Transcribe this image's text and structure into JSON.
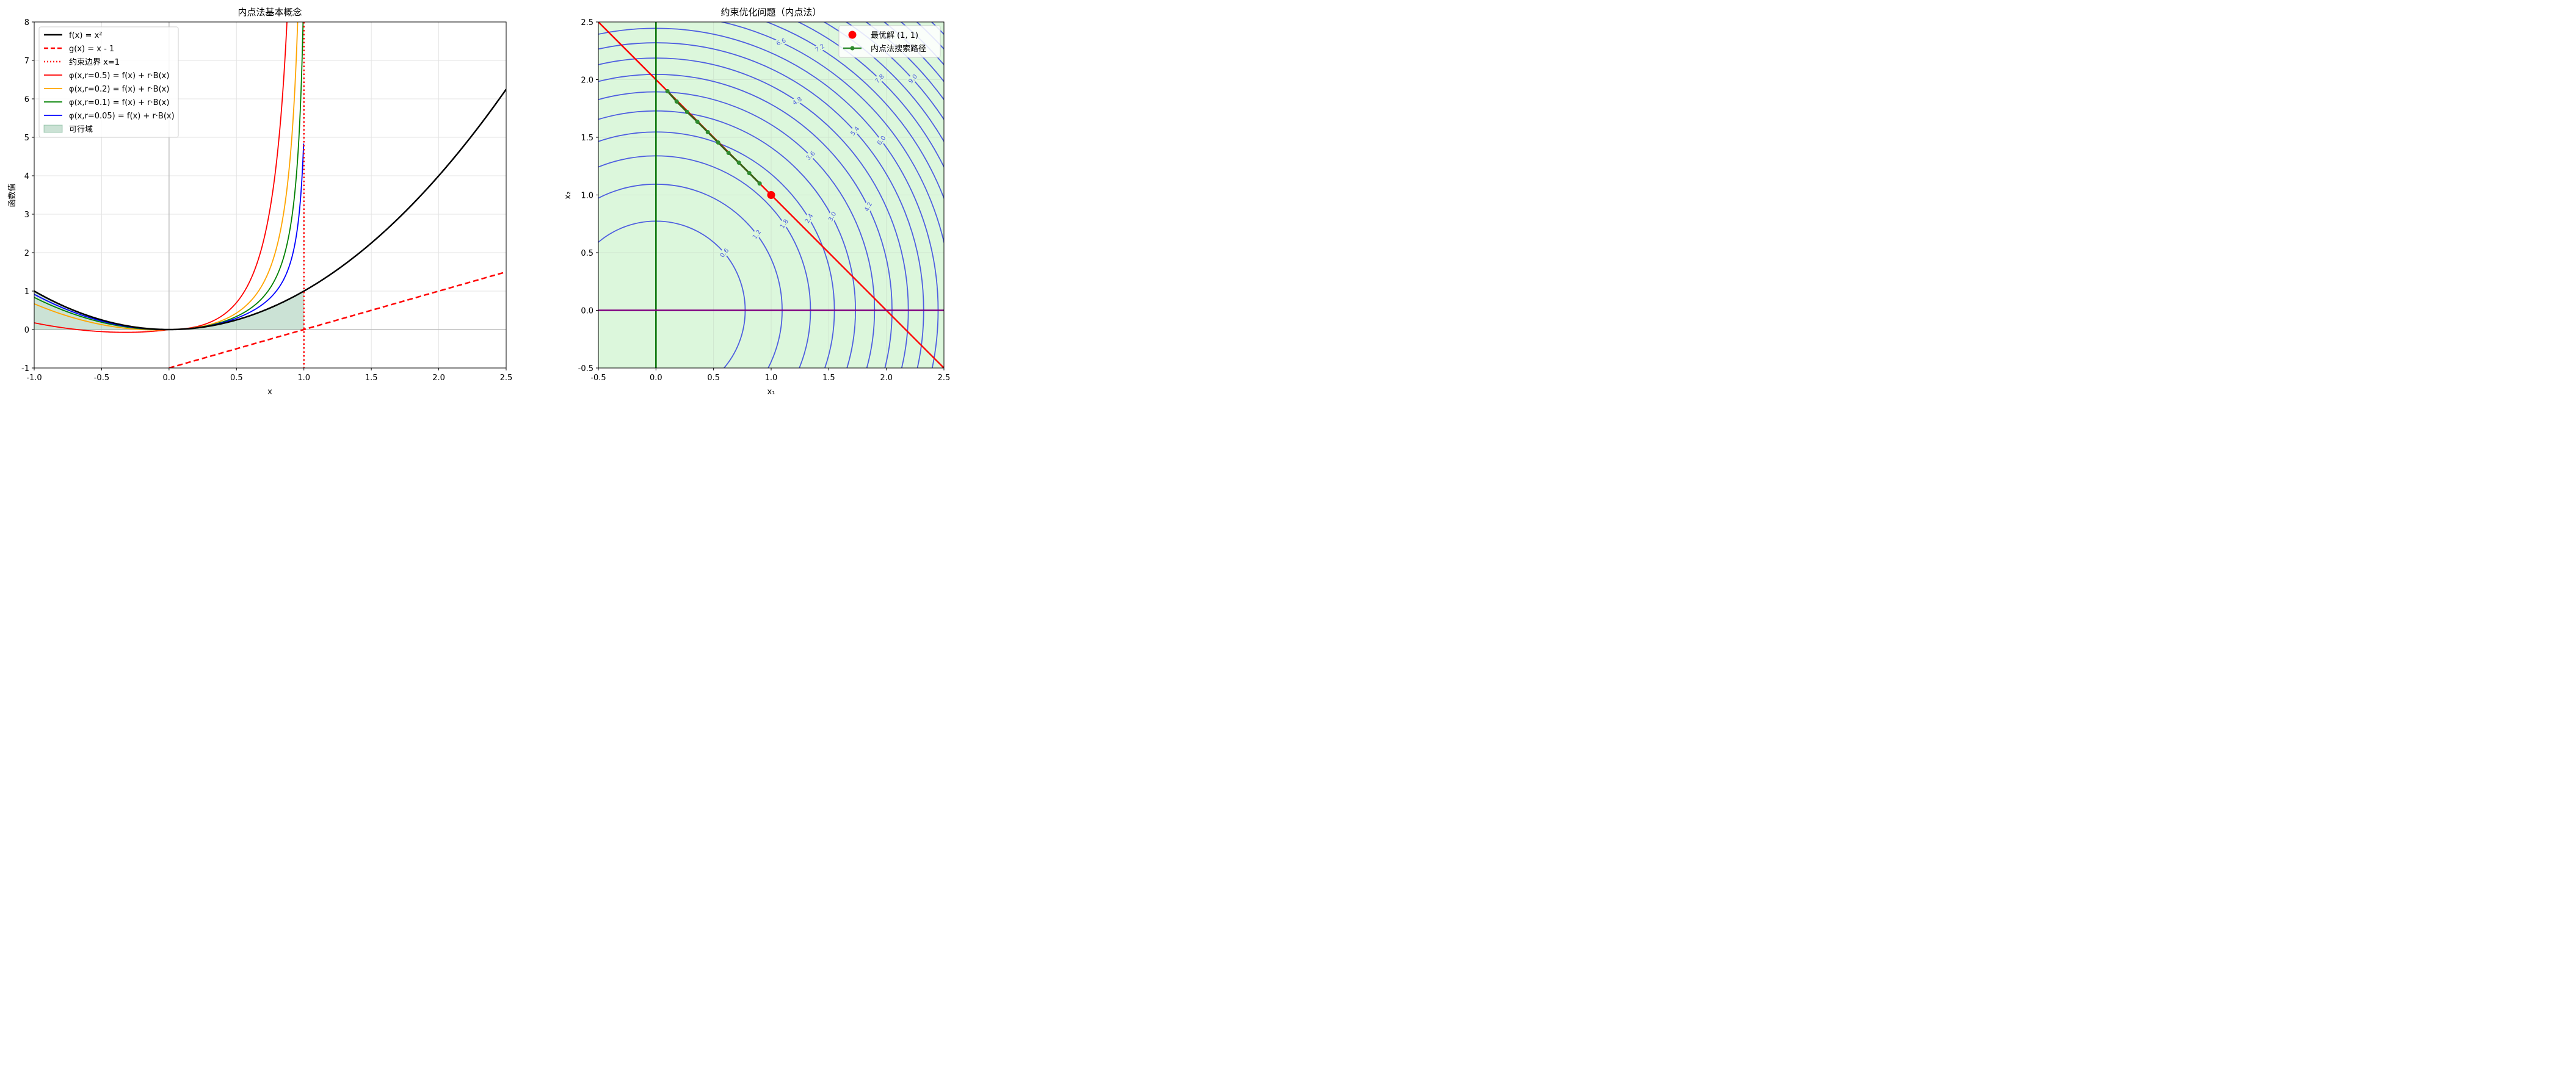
{
  "chart_data": [
    {
      "type": "line",
      "title": "内点法基本概念",
      "xlabel": "x",
      "ylabel": "函数值",
      "xlim": [
        -1.0,
        2.5
      ],
      "ylim": [
        -1,
        8
      ],
      "xticks": [
        "-1.0",
        "-0.5",
        "0.0",
        "0.5",
        "1.0",
        "1.5",
        "2.0",
        "2.5"
      ],
      "yticks": [
        "-1",
        "0",
        "1",
        "2",
        "3",
        "4",
        "5",
        "6",
        "7",
        "8"
      ],
      "grid": true,
      "legend_position": "top-left",
      "series": [
        {
          "name": "f(x) = x²",
          "color": "#000000",
          "style": "solid",
          "function": "x^2",
          "x_range": [
            -1.0,
            2.5
          ]
        },
        {
          "name": "g(x) = x - 1",
          "color": "#ff0000",
          "style": "dashed",
          "function": "x - 1",
          "x_range": [
            0.0,
            2.5
          ]
        },
        {
          "name": "约束边界 x=1",
          "color": "#ff0000",
          "style": "dotted",
          "function": "vertical line x = 1"
        },
        {
          "name": "φ(x,r=0.5) = f(x) + r·B(x)",
          "color": "#ff0000",
          "style": "solid",
          "r": 0.5,
          "x_range": [
            -1.0,
            1.0
          ]
        },
        {
          "name": "φ(x,r=0.2) = f(x) + r·B(x)",
          "color": "#ffa500",
          "style": "solid",
          "r": 0.2,
          "x_range": [
            -1.0,
            1.0
          ]
        },
        {
          "name": "φ(x,r=0.1) = f(x) + r·B(x)",
          "color": "#008000",
          "style": "solid",
          "r": 0.1,
          "x_range": [
            -1.0,
            1.0
          ]
        },
        {
          "name": "φ(x,r=0.05) = f(x) + r·B(x)",
          "color": "#0000ff",
          "style": "solid",
          "r": 0.05,
          "x_range": [
            -1.0,
            1.0
          ]
        },
        {
          "name": "可行域",
          "color": "#2e8b57",
          "style": "fill",
          "x_range": [
            -1.0,
            1.0
          ]
        }
      ]
    },
    {
      "type": "line",
      "title": "约束优化问题（内点法）",
      "xlabel": "x₁",
      "ylabel": "x₂",
      "xlim": [
        -0.5,
        2.5
      ],
      "ylim": [
        -0.5,
        2.5
      ],
      "xticks": [
        "-0.5",
        "0.0",
        "0.5",
        "1.0",
        "1.5",
        "2.0",
        "2.5"
      ],
      "yticks": [
        "-0.5",
        "0.0",
        "0.5",
        "1.0",
        "1.5",
        "2.0",
        "2.5"
      ],
      "grid": true,
      "legend_position": "top-right",
      "contour_levels": [
        0.6,
        1.2,
        1.8,
        2.4,
        3.0,
        3.6,
        4.2,
        4.8,
        5.4,
        6.0,
        6.6,
        7.2,
        7.8,
        8.4,
        9.0,
        9.6,
        10.2,
        10.8,
        11.4,
        12.0
      ],
      "contour_labels": [
        "0.6",
        "1.2",
        "1.8",
        "2.4",
        "3.0",
        "3.6",
        "4.2",
        "4.8",
        "5.4",
        "6.0",
        "6.6",
        "7.2",
        "7.8",
        "9.0"
      ],
      "contour_color": "#4f5fe0",
      "feasible_region_color": "#dcf7dc",
      "constraints": [
        {
          "line": "x₁ + x₂ = 2",
          "color": "#ff0000"
        },
        {
          "line": "x₁ = 0",
          "color": "#007000"
        },
        {
          "line": "x₂ = 0",
          "color": "#800080"
        }
      ],
      "optimum": {
        "name": "最优解 (1, 1)",
        "x": 1.0,
        "y": 1.0,
        "color": "#ff0000"
      },
      "path": {
        "name": "内点法搜索路径",
        "color": "#2e8b2e",
        "x": [
          0.1,
          0.18,
          0.27,
          0.36,
          0.45,
          0.54,
          0.63,
          0.72,
          0.81,
          0.9
        ],
        "y": [
          1.9,
          1.81,
          1.72,
          1.635,
          1.545,
          1.455,
          1.365,
          1.28,
          1.19,
          1.1
        ]
      }
    }
  ]
}
